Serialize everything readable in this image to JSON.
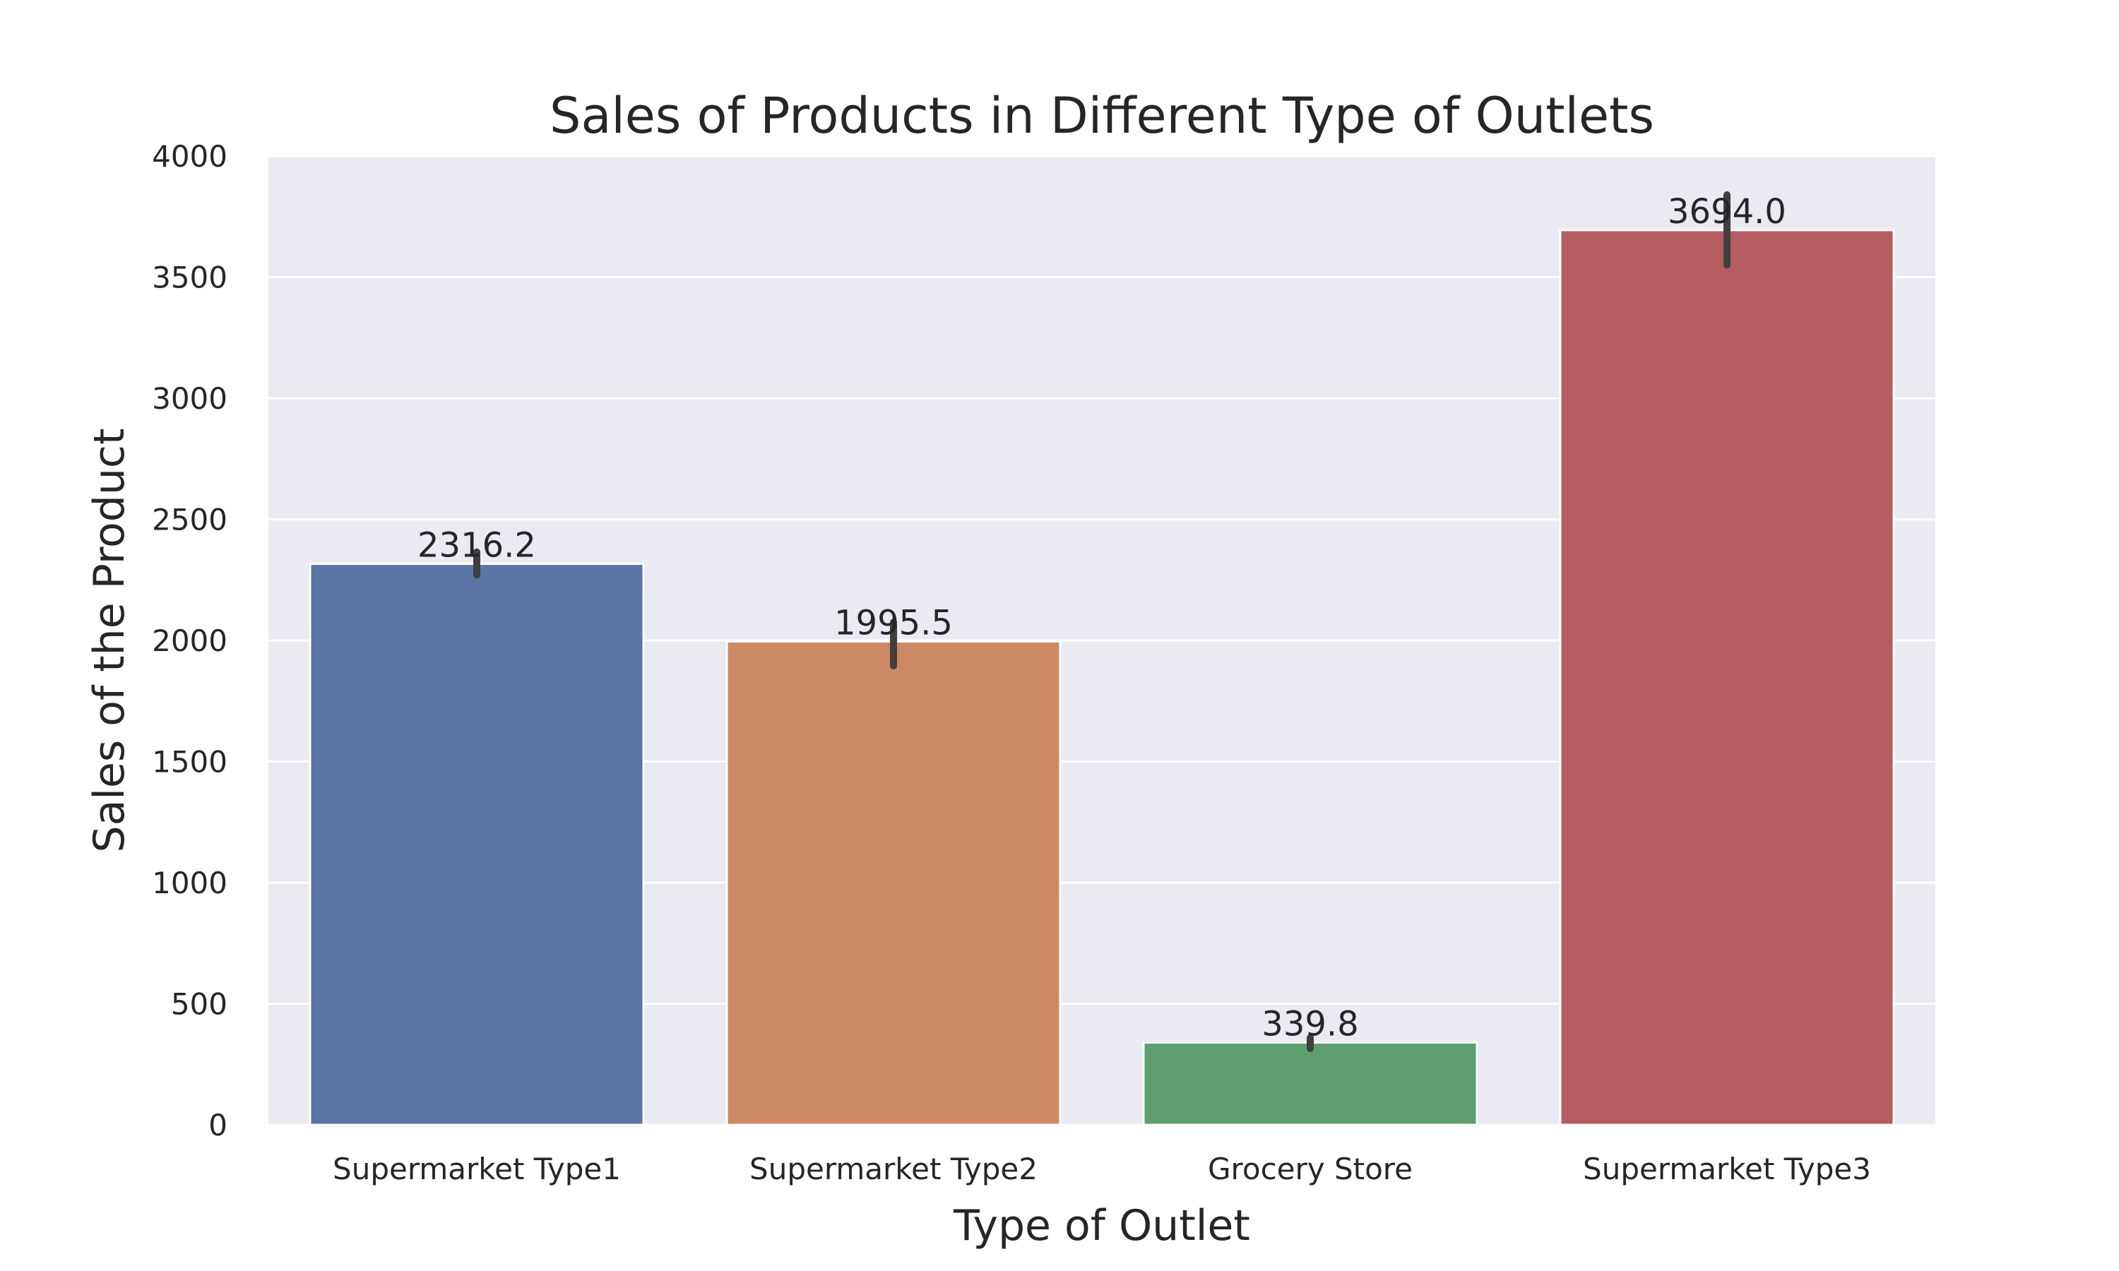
{
  "chart_data": {
    "type": "bar",
    "title": "Sales of Products in Different Type of Outlets",
    "xlabel": "Type of Outlet",
    "ylabel": "Sales of the Product",
    "categories": [
      "Supermarket Type1",
      "Supermarket Type2",
      "Grocery Store",
      "Supermarket Type3"
    ],
    "values": [
      2316.2,
      1995.5,
      339.8,
      3694.0
    ],
    "value_labels": [
      "2316.2",
      "1995.5",
      "339.8",
      "3694.0"
    ],
    "error_bars": [
      [
        2270,
        2365
      ],
      [
        1895,
        2075
      ],
      [
        315,
        360
      ],
      [
        3550,
        3840
      ]
    ],
    "colors": [
      "#5975a4",
      "#cc8963",
      "#5f9e6e",
      "#b55d60"
    ],
    "ylim": [
      0,
      4000
    ],
    "yticks": [
      0,
      500,
      1000,
      1500,
      2000,
      2500,
      3000,
      3500,
      4000
    ],
    "grid": true,
    "background": "#eaeaf2"
  }
}
